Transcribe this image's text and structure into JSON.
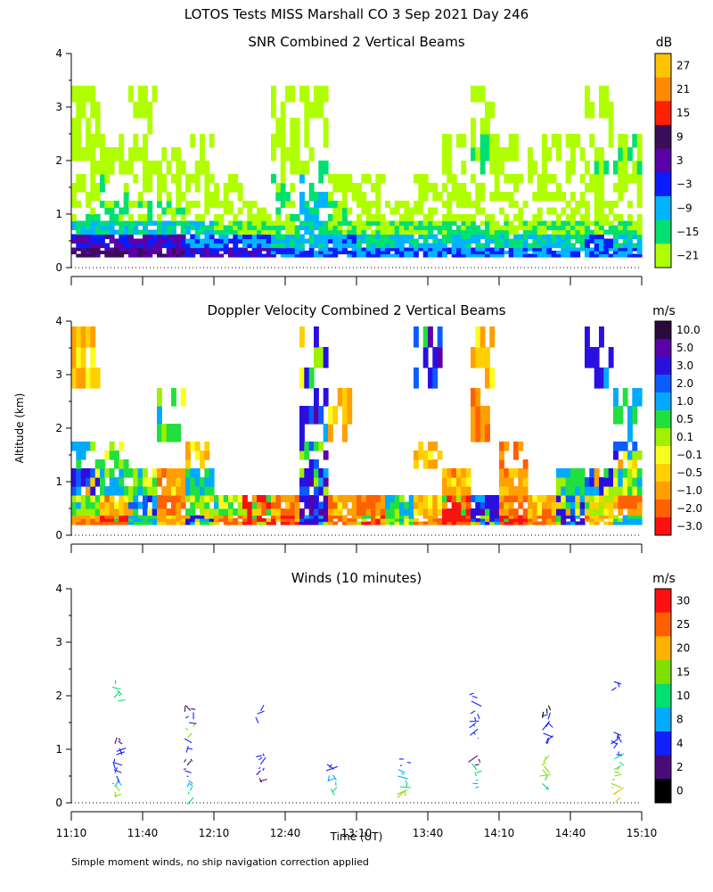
{
  "chart_data": {
    "type": "heatmap",
    "title": "LOTOS Tests MISS Marshall CO   3 Sep 2021 Day 246",
    "ylabel": "Altitude (km)",
    "xlabel": "Time (UT)",
    "x_ticks": [
      "11:10",
      "11:40",
      "12:10",
      "12:40",
      "13:10",
      "13:40",
      "14:10",
      "14:40",
      "15:10"
    ],
    "xlim_minutes": [
      670,
      910
    ],
    "ylim": [
      0,
      4
    ],
    "y_ticks": [
      "0",
      "1",
      "2",
      "3",
      "4"
    ],
    "footnote": "Simple moment winds, no ship navigation correction applied",
    "panels": [
      {
        "title": "SNR Combined 2 Vertical Beams",
        "type": "heatmap",
        "unit": "dB",
        "colorbar": {
          "labels": [
            "27",
            "21",
            "15",
            "9",
            "3",
            "−3",
            "−9",
            "−15",
            "−21"
          ],
          "colors": [
            "#ffc400",
            "#ff8c00",
            "#ff2000",
            "#3a0e5a",
            "#5a00a8",
            "#0a1cff",
            "#00b4ff",
            "#00e070",
            "#b0ff00"
          ]
        },
        "value_rows": [
          {
            "alt_km": 0.25,
            "values_db": [
              9,
              9,
              9,
              9,
              3,
              3,
              3,
              -3,
              -3,
              -3,
              -3,
              -3,
              -3,
              -3,
              -3,
              -3,
              -3,
              -3,
              -3,
              -3
            ]
          },
          {
            "alt_km": 0.5,
            "values_db": [
              3,
              3,
              3,
              3,
              -3,
              -3,
              -3,
              -9,
              -9,
              -3,
              -9,
              -9,
              -9,
              -9,
              -9,
              -9,
              -9,
              -9,
              -3,
              -9
            ]
          },
          {
            "alt_km": 0.75,
            "values_db": [
              -9,
              -9,
              -9,
              -9,
              -9,
              -15,
              -15,
              -15,
              -9,
              -15,
              -15,
              -15,
              -15,
              -15,
              -15,
              -15,
              -15,
              -15,
              -15,
              -15
            ]
          },
          {
            "alt_km": 1.0,
            "values_db": [
              -15,
              -15,
              -15,
              -15,
              -21,
              -21,
              -21,
              -15,
              -9,
              -15,
              -21,
              -21,
              -21,
              -21,
              -21,
              -21,
              -21,
              -21,
              -21,
              -21
            ]
          },
          {
            "alt_km": 1.5,
            "values_db": [
              -21,
              -15,
              -21,
              -21,
              -21,
              -21,
              null,
              -15,
              -9,
              -21,
              -21,
              null,
              -21,
              -21,
              -21,
              -21,
              -21,
              -21,
              -21,
              -21
            ]
          },
          {
            "alt_km": 2.0,
            "values_db": [
              -21,
              -21,
              -21,
              -21,
              -21,
              null,
              null,
              -21,
              -15,
              null,
              null,
              null,
              null,
              -21,
              -15,
              -21,
              -21,
              -21,
              -15,
              -15
            ]
          },
          {
            "alt_km": 3.0,
            "values_db": [
              -21,
              null,
              -21,
              null,
              null,
              null,
              null,
              -21,
              -21,
              null,
              null,
              null,
              null,
              null,
              -21,
              null,
              null,
              null,
              -21,
              null
            ]
          }
        ]
      },
      {
        "title": "Doppler Velocity Combined 2 Vertical Beams",
        "type": "heatmap",
        "unit": "m/s",
        "colorbar": {
          "labels": [
            "10.0",
            "5.0",
            "3.0",
            "2.0",
            "1.0",
            "0.5",
            "0.1",
            "−0.1",
            "−0.5",
            "−1.0",
            "−2.0",
            "−3.0"
          ],
          "colors": [
            "#2a0a3a",
            "#5a00a8",
            "#2a10e0",
            "#0a5cff",
            "#00aaff",
            "#20e040",
            "#a0f000",
            "#f8ff20",
            "#ffd000",
            "#ffa000",
            "#ff6000",
            "#ff1010"
          ]
        },
        "value_rows": [
          {
            "alt_km": 0.25,
            "values_ms": [
              -1.0,
              -2.0,
              1.0,
              -0.5,
              2.0,
              -1.0,
              -2.0,
              -3.0,
              3.0,
              -1.0,
              -2.0,
              0.5,
              -1.0,
              -3.0,
              2.0,
              -2.0,
              -1.0,
              3.0,
              -0.5,
              1.0
            ]
          },
          {
            "alt_km": 0.5,
            "values_ms": [
              0.5,
              -0.5,
              2.0,
              -1.0,
              0.1,
              0.5,
              -2.0,
              -1.0,
              5.0,
              -0.5,
              -1.0,
              1.0,
              -0.5,
              -2.0,
              3.0,
              -1.0,
              -0.5,
              2.0,
              0.1,
              -1.0
            ]
          },
          {
            "alt_km": 1.0,
            "values_ms": [
              2.0,
              1.0,
              0.5,
              -0.5,
              1.0,
              null,
              null,
              null,
              3.0,
              null,
              null,
              null,
              null,
              -0.5,
              null,
              -0.5,
              null,
              1.0,
              2.0,
              0.5
            ]
          },
          {
            "alt_km": 1.5,
            "values_ms": [
              1.0,
              0.5,
              null,
              null,
              -0.5,
              null,
              null,
              null,
              3.0,
              null,
              null,
              null,
              -0.5,
              null,
              null,
              -1.0,
              null,
              null,
              null,
              2.0
            ]
          },
          {
            "alt_km": 2.0,
            "values_ms": [
              null,
              null,
              null,
              0.5,
              null,
              null,
              null,
              null,
              3.0,
              -0.5,
              null,
              null,
              null,
              null,
              -1.0,
              null,
              null,
              null,
              null,
              1.0
            ]
          },
          {
            "alt_km": 3.5,
            "values_ms": [
              -0.5,
              null,
              null,
              null,
              null,
              null,
              null,
              null,
              2.0,
              null,
              null,
              null,
              3.0,
              null,
              -0.5,
              null,
              null,
              null,
              3.0,
              null
            ]
          }
        ]
      },
      {
        "title": "Winds (10 minutes)",
        "type": "wind_profile",
        "unit": "m/s",
        "colorbar": {
          "labels": [
            "30",
            "25",
            "20",
            "15",
            "10",
            "8",
            "4",
            "2",
            "0"
          ],
          "colors": [
            "#ff1010",
            "#ff6000",
            "#ffb000",
            "#80e000",
            "#00e070",
            "#00aaff",
            "#1020ff",
            "#4a0a78",
            "#000000"
          ]
        },
        "profiles": [
          {
            "time_min": 696,
            "heights_km": [
              0.1,
              0.3,
              0.5,
              0.7,
              0.9,
              1.1,
              1.9,
              2.1
            ],
            "speeds_ms": [
              15,
              8,
              4,
              4,
              6,
              2,
              10,
              10
            ]
          },
          {
            "time_min": 726,
            "heights_km": [
              0.1,
              0.3,
              0.5,
              0.7,
              1.0,
              1.3,
              1.5,
              1.7
            ],
            "speeds_ms": [
              12,
              8,
              4,
              2,
              4,
              15,
              4,
              2
            ]
          },
          {
            "time_min": 756,
            "heights_km": [
              0.4,
              0.6,
              0.8,
              1.6
            ],
            "speeds_ms": [
              2,
              4,
              4,
              4
            ]
          },
          {
            "time_min": 786,
            "heights_km": [
              0.2,
              0.4,
              0.6
            ],
            "speeds_ms": [
              10,
              8,
              4
            ]
          },
          {
            "time_min": 816,
            "heights_km": [
              0.1,
              0.3,
              0.5,
              0.7
            ],
            "speeds_ms": [
              15,
              10,
              8,
              4
            ]
          },
          {
            "time_min": 846,
            "heights_km": [
              0.3,
              0.5,
              0.7,
              1.2,
              1.4,
              1.6,
              1.9
            ],
            "speeds_ms": [
              8,
              10,
              2,
              4,
              4,
              4,
              4
            ]
          },
          {
            "time_min": 876,
            "heights_km": [
              0.3,
              0.5,
              0.7,
              1.1,
              1.3,
              1.5,
              1.7
            ],
            "speeds_ms": [
              10,
              15,
              15,
              4,
              4,
              4,
              0
            ]
          },
          {
            "time_min": 906,
            "heights_km": [
              0.1,
              0.3,
              0.5,
              0.7,
              0.9,
              1.1,
              1.2,
              2.1
            ],
            "speeds_ms": [
              20,
              15,
              15,
              10,
              4,
              4,
              4,
              4
            ]
          }
        ]
      }
    ]
  }
}
